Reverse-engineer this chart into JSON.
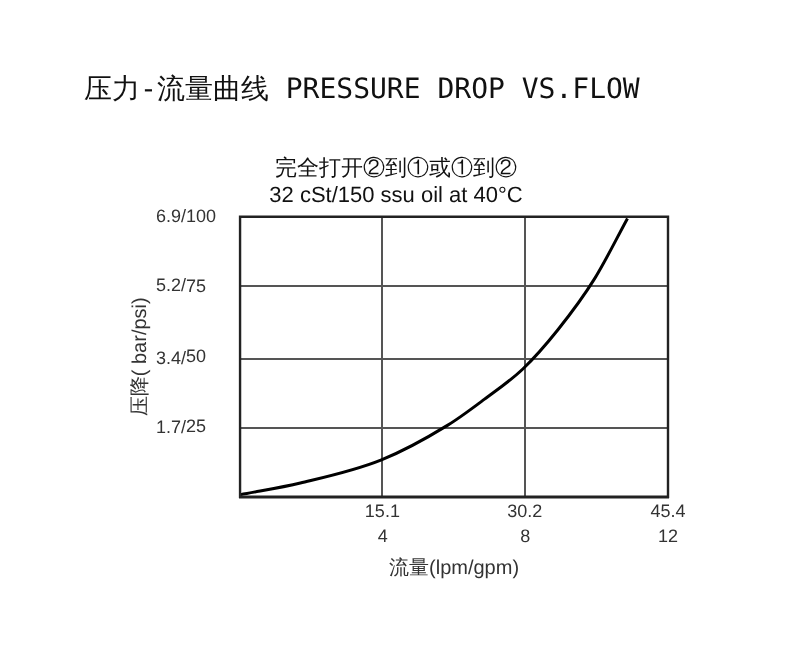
{
  "chart_data": {
    "type": "line",
    "title": "压力-流量曲线 PRESSURE DROP VS.FLOW",
    "subtitle": "完全打开②到①或①到②\n32 cSt/150 ssu oil at 40°C",
    "xlabel": "流量(lpm/gpm)",
    "ylabel": "压降( bar/psi)",
    "series": [
      {
        "color": "#000000",
        "x": [
          0,
          6.4,
          15.0,
          22.0,
          25.9,
          30.0,
          33.7,
          37.6,
          41.1
        ],
        "values": [
          0.05,
          0.34,
          0.91,
          1.76,
          2.4,
          3.15,
          4.11,
          5.37,
          6.86
        ]
      }
    ],
    "xlim": [
      0,
      45.4
    ],
    "xticks": [
      15.1,
      30.2,
      45.4
    ],
    "x2lim": [
      0,
      12
    ],
    "x2ticks": [
      4,
      8,
      12
    ],
    "ylim": [
      0,
      6.9
    ],
    "yticks": [
      {
        "value": 1.7,
        "label": "1.7/"
      },
      {
        "value": 3.4,
        "label": "3.4/"
      },
      {
        "value": 5.2,
        "label": "5.2/"
      },
      {
        "value": 6.9,
        "label": "6.9/"
      }
    ],
    "y2lim": [
      0,
      100
    ],
    "y2ticks": [
      25,
      50,
      75,
      100
    ],
    "grid": true,
    "legend": false,
    "marker": "none",
    "line_style": "solid"
  }
}
